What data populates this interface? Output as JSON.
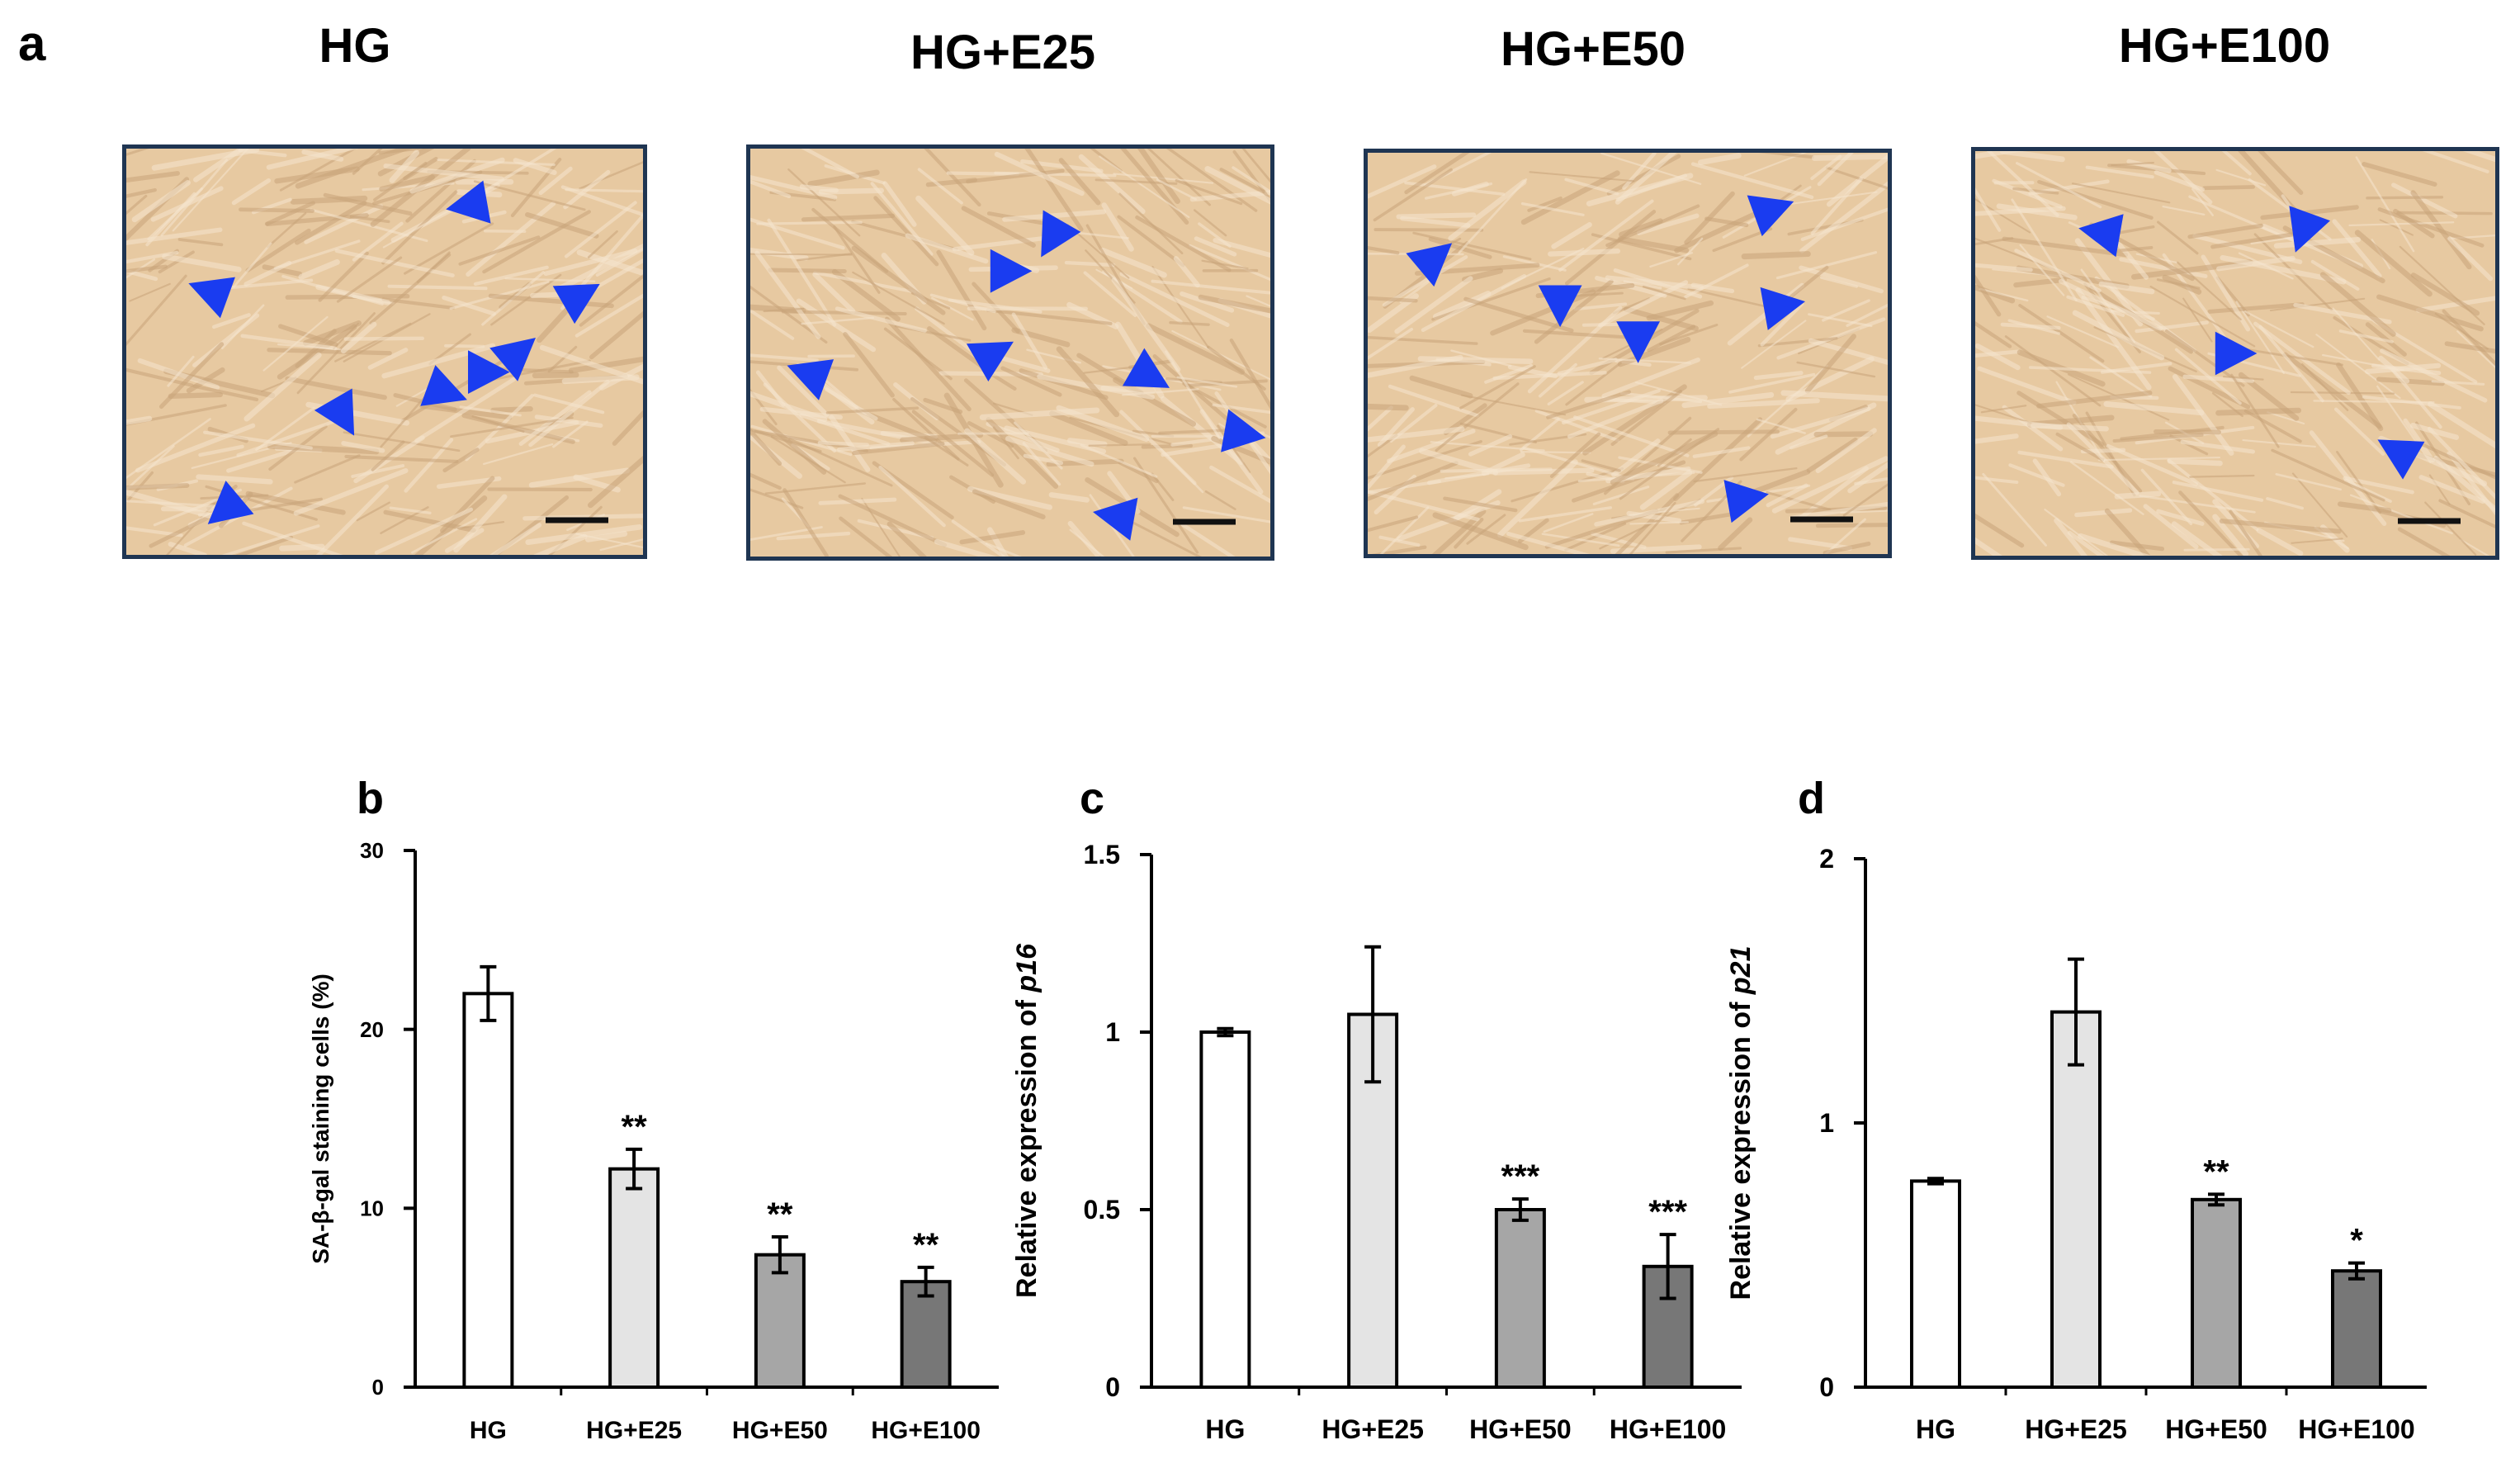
{
  "panel_a": {
    "letter": "a",
    "images": [
      {
        "title": "HG",
        "arrow_count": 8
      },
      {
        "title": "HG+E25",
        "arrow_count": 7
      },
      {
        "title": "HG+E50",
        "arrow_count": 6
      },
      {
        "title": "HG+E100",
        "arrow_count": 4
      }
    ]
  },
  "colors": {
    "arrow": "#1a3cf0",
    "frame": "#1f3552",
    "tissue": "#e7c9a1",
    "bars": [
      "#ffffff",
      "#e4e4e4",
      "#a6a6a6",
      "#777777"
    ]
  },
  "chart_data": [
    {
      "type": "bar",
      "letter": "b",
      "categories": [
        "HG",
        "HG+E25",
        "HG+E50",
        "HG+E100"
      ],
      "values": [
        22,
        12.2,
        7.4,
        5.9
      ],
      "errors": [
        1.5,
        1.1,
        1.0,
        0.8
      ],
      "significance": [
        "",
        "**",
        "**",
        "**"
      ],
      "ylabel": "SA-β-gal staining cells (%)",
      "ylim": [
        0,
        30
      ],
      "yticks": [
        0,
        10,
        20,
        30
      ],
      "ytick_labels": [
        "0",
        "10",
        "20",
        "30"
      ]
    },
    {
      "type": "bar",
      "letter": "c",
      "categories": [
        "HG",
        "HG+E25",
        "HG+E50",
        "HG+E100"
      ],
      "values": [
        1.0,
        1.05,
        0.5,
        0.34
      ],
      "errors": [
        0.01,
        0.19,
        0.03,
        0.09
      ],
      "significance": [
        "",
        "",
        "***",
        "***"
      ],
      "ylabel_prefix": "Relative expression of ",
      "ylabel_gene": "p16",
      "ylim": [
        0,
        1.5
      ],
      "yticks": [
        0,
        0.5,
        1,
        1.5
      ],
      "ytick_labels": [
        "0",
        "0.5",
        "1",
        "1.5"
      ]
    },
    {
      "type": "bar",
      "letter": "d",
      "categories": [
        "HG",
        "HG+E25",
        "HG+E50",
        "HG+E100"
      ],
      "values": [
        0.78,
        1.42,
        0.71,
        0.44
      ],
      "errors": [
        0.01,
        0.2,
        0.02,
        0.03
      ],
      "significance": [
        "",
        "",
        "**",
        "*"
      ],
      "ylabel_prefix": "Relative expression of  ",
      "ylabel_gene": "p21",
      "ylim": [
        0,
        2
      ],
      "yticks": [
        0,
        1,
        2
      ],
      "ytick_labels": [
        "0",
        "1",
        "2"
      ]
    }
  ]
}
